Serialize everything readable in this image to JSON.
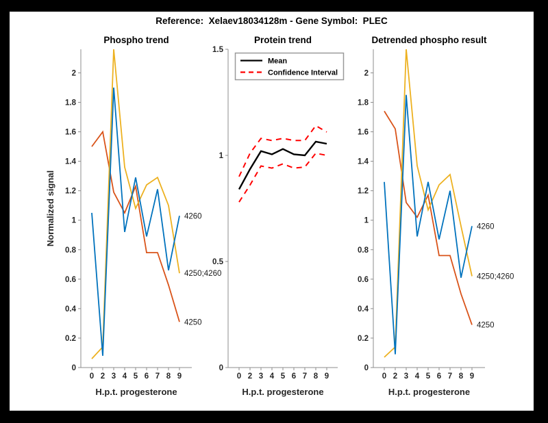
{
  "figure": {
    "title": "Reference:  Xelaev18034128m - Gene Symbol:  PLEC"
  },
  "palette": {
    "blue": "#0072BD",
    "orange": "#D95319",
    "yellow": "#EDB120",
    "red": "#FF0000",
    "black": "#000000",
    "axis": "#8c8c8c",
    "text": "#262626"
  },
  "chart_data": [
    {
      "type": "line",
      "title": "Phospho trend",
      "xlabel": "H.p.t. progesterone",
      "ylabel": "Normalized signal",
      "categories": [
        "0",
        "2",
        "3",
        "4",
        "5",
        "6",
        "7",
        "8",
        "9"
      ],
      "ylim": [
        0,
        2.16
      ],
      "grid": false,
      "ytick_values": [
        0,
        0.2,
        0.4,
        0.6,
        0.8,
        1,
        1.2,
        1.4,
        1.6,
        1.8,
        2
      ],
      "ytick_labels": [
        "0",
        "0.2",
        "0.4",
        "0.6",
        "0.8",
        "1",
        "1.2",
        "1.4",
        "1.6",
        "1.8",
        "2"
      ],
      "series": [
        {
          "name": "4250",
          "color_key": "orange",
          "style": "solid",
          "end_label": "4250",
          "values": [
            1.5,
            1.6,
            1.19,
            1.05,
            1.23,
            0.78,
            0.78,
            0.56,
            0.31
          ]
        },
        {
          "name": "4250;4260",
          "color_key": "yellow",
          "style": "solid",
          "end_label": "4250;4260",
          "values": [
            0.06,
            0.14,
            2.16,
            1.36,
            1.08,
            1.24,
            1.29,
            1.1,
            0.64
          ]
        },
        {
          "name": "4260",
          "color_key": "blue",
          "style": "solid",
          "end_label": "4260",
          "values": [
            1.05,
            0.08,
            1.9,
            0.92,
            1.29,
            0.89,
            1.21,
            0.66,
            1.03
          ]
        }
      ],
      "legend": null
    },
    {
      "type": "line",
      "title": "Protein trend",
      "xlabel": "H.p.t. progesterone",
      "ylabel": "",
      "categories": [
        "0",
        "2",
        "3",
        "4",
        "5",
        "6",
        "7",
        "8",
        "9"
      ],
      "ylim": [
        0,
        1.5
      ],
      "grid": false,
      "ytick_values": [
        0,
        0.5,
        1,
        1.5
      ],
      "ytick_labels": [
        "0",
        "0.5",
        "1",
        "1.5"
      ],
      "series": [
        {
          "name": "Mean",
          "color_key": "black",
          "style": "solid",
          "width": 2.4,
          "end_label": null,
          "values": [
            0.84,
            0.935,
            1.02,
            1.005,
            1.03,
            1.005,
            1.0,
            1.065,
            1.055
          ]
        },
        {
          "name": "Confidence Interval upper",
          "color_key": "red",
          "style": "dashed",
          "width": 2,
          "end_label": null,
          "values": [
            0.9,
            1.01,
            1.08,
            1.07,
            1.08,
            1.07,
            1.07,
            1.14,
            1.11
          ]
        },
        {
          "name": "Confidence Interval lower",
          "color_key": "red",
          "style": "dashed",
          "width": 2,
          "end_label": null,
          "values": [
            0.78,
            0.86,
            0.95,
            0.94,
            0.96,
            0.94,
            0.945,
            1.01,
            1.0
          ]
        }
      ],
      "legend": {
        "entries": [
          {
            "label": "Mean",
            "color_key": "black",
            "style": "solid"
          },
          {
            "label": "Confidence Interval",
            "color_key": "red",
            "style": "dashed"
          }
        ]
      }
    },
    {
      "type": "line",
      "title": "Detrended phospho result",
      "xlabel": "H.p.t. progesterone",
      "ylabel": "",
      "categories": [
        "0",
        "2",
        "3",
        "4",
        "5",
        "6",
        "7",
        "8",
        "9"
      ],
      "ylim": [
        0,
        2.16
      ],
      "grid": false,
      "ytick_values": [
        0,
        0.2,
        0.4,
        0.6,
        0.8,
        1,
        1.2,
        1.4,
        1.6,
        1.8,
        2
      ],
      "ytick_labels": [
        "0",
        "0.2",
        "0.4",
        "0.6",
        "0.8",
        "1",
        "1.2",
        "1.4",
        "1.6",
        "1.8",
        "2"
      ],
      "series": [
        {
          "name": "4250",
          "color_key": "orange",
          "style": "solid",
          "end_label": "4250",
          "values": [
            1.74,
            1.62,
            1.12,
            1.02,
            1.17,
            0.76,
            0.76,
            0.5,
            0.29
          ]
        },
        {
          "name": "4250;4260",
          "color_key": "yellow",
          "style": "solid",
          "end_label": "4250;4260",
          "values": [
            0.07,
            0.14,
            2.16,
            1.37,
            1.07,
            1.24,
            1.31,
            0.96,
            0.62
          ]
        },
        {
          "name": "4260",
          "color_key": "blue",
          "style": "solid",
          "end_label": "4260",
          "values": [
            1.26,
            0.09,
            1.85,
            0.89,
            1.26,
            0.87,
            1.2,
            0.61,
            0.96
          ]
        }
      ],
      "legend": null
    }
  ]
}
